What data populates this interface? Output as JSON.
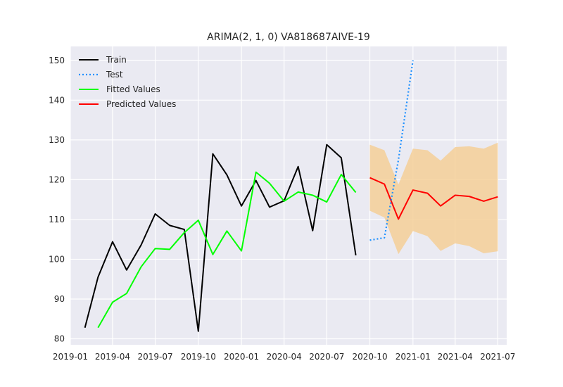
{
  "chart_data": {
    "type": "line",
    "title": "ARIMA(2, 1, 0) VA818687AIVE-19",
    "xlabel": "",
    "ylabel": "",
    "x_range": [
      "2019-01-01",
      "2021-07-20"
    ],
    "ylim": [
      78.5,
      153.5
    ],
    "x_ticks": [
      "2019-01",
      "2019-04",
      "2019-07",
      "2019-10",
      "2020-01",
      "2020-04",
      "2020-07",
      "2020-10",
      "2021-01",
      "2021-04",
      "2021-07"
    ],
    "y_ticks": [
      80,
      90,
      100,
      110,
      120,
      130,
      140,
      150
    ],
    "grid": true,
    "legend_position": "top-left",
    "series": [
      {
        "name": "Train",
        "style": "solid",
        "color": "#000000",
        "x": [
          "2019-02-01",
          "2019-03-01",
          "2019-04-01",
          "2019-05-01",
          "2019-06-01",
          "2019-07-01",
          "2019-08-01",
          "2019-09-01",
          "2019-10-01",
          "2019-11-01",
          "2019-12-01",
          "2020-01-01",
          "2020-02-01",
          "2020-03-01",
          "2020-04-01",
          "2020-05-01",
          "2020-06-01",
          "2020-07-01",
          "2020-08-01",
          "2020-09-01"
        ],
        "values": [
          82.8,
          95.5,
          104.4,
          97.3,
          103.6,
          111.4,
          108.5,
          107.5,
          81.9,
          126.5,
          121.2,
          113.4,
          119.8,
          113.1,
          114.7,
          123.3,
          107.2,
          128.8,
          125.5,
          101.0
        ]
      },
      {
        "name": "Test",
        "style": "dotted",
        "color": "#1e90ff",
        "x": [
          "2020-10-01",
          "2020-11-01",
          "2020-12-01",
          "2021-01-01"
        ],
        "values": [
          104.8,
          105.4,
          125.0,
          150.0
        ]
      },
      {
        "name": "Fitted Values",
        "style": "solid",
        "color": "#00ff00",
        "x": [
          "2019-03-01",
          "2019-04-01",
          "2019-05-01",
          "2019-06-01",
          "2019-07-01",
          "2019-08-01",
          "2019-09-01",
          "2019-10-01",
          "2019-11-01",
          "2019-12-01",
          "2020-01-01",
          "2020-02-01",
          "2020-03-01",
          "2020-04-01",
          "2020-05-01",
          "2020-06-01",
          "2020-07-01",
          "2020-08-01",
          "2020-09-01"
        ],
        "values": [
          82.8,
          89.2,
          91.4,
          98.1,
          102.7,
          102.5,
          106.7,
          109.8,
          101.2,
          107.1,
          102.1,
          121.9,
          119.1,
          114.6,
          116.9,
          116.1,
          114.4,
          121.3,
          116.8
        ]
      },
      {
        "name": "Predicted Values",
        "style": "solid",
        "color": "#ff0000",
        "x": [
          "2020-10-01",
          "2020-11-01",
          "2020-12-01",
          "2021-01-01",
          "2021-02-01",
          "2021-03-01",
          "2021-04-01",
          "2021-05-01",
          "2021-06-01",
          "2021-07-01"
        ],
        "values": [
          120.5,
          118.9,
          110.1,
          117.4,
          116.6,
          113.4,
          116.1,
          115.8,
          114.6,
          115.7
        ]
      }
    ],
    "confidence_band": {
      "color": "#f5cf98",
      "x": [
        "2020-10-01",
        "2020-11-01",
        "2020-12-01",
        "2021-01-01",
        "2021-02-01",
        "2021-03-01",
        "2021-04-01",
        "2021-05-01",
        "2021-06-01",
        "2021-07-01"
      ],
      "lower": [
        112.2,
        110.5,
        101.3,
        107.1,
        105.8,
        102.1,
        104.0,
        103.3,
        101.5,
        102.0
      ],
      "upper": [
        128.8,
        127.4,
        118.8,
        127.8,
        127.4,
        124.8,
        128.2,
        128.4,
        127.8,
        129.3
      ]
    }
  }
}
